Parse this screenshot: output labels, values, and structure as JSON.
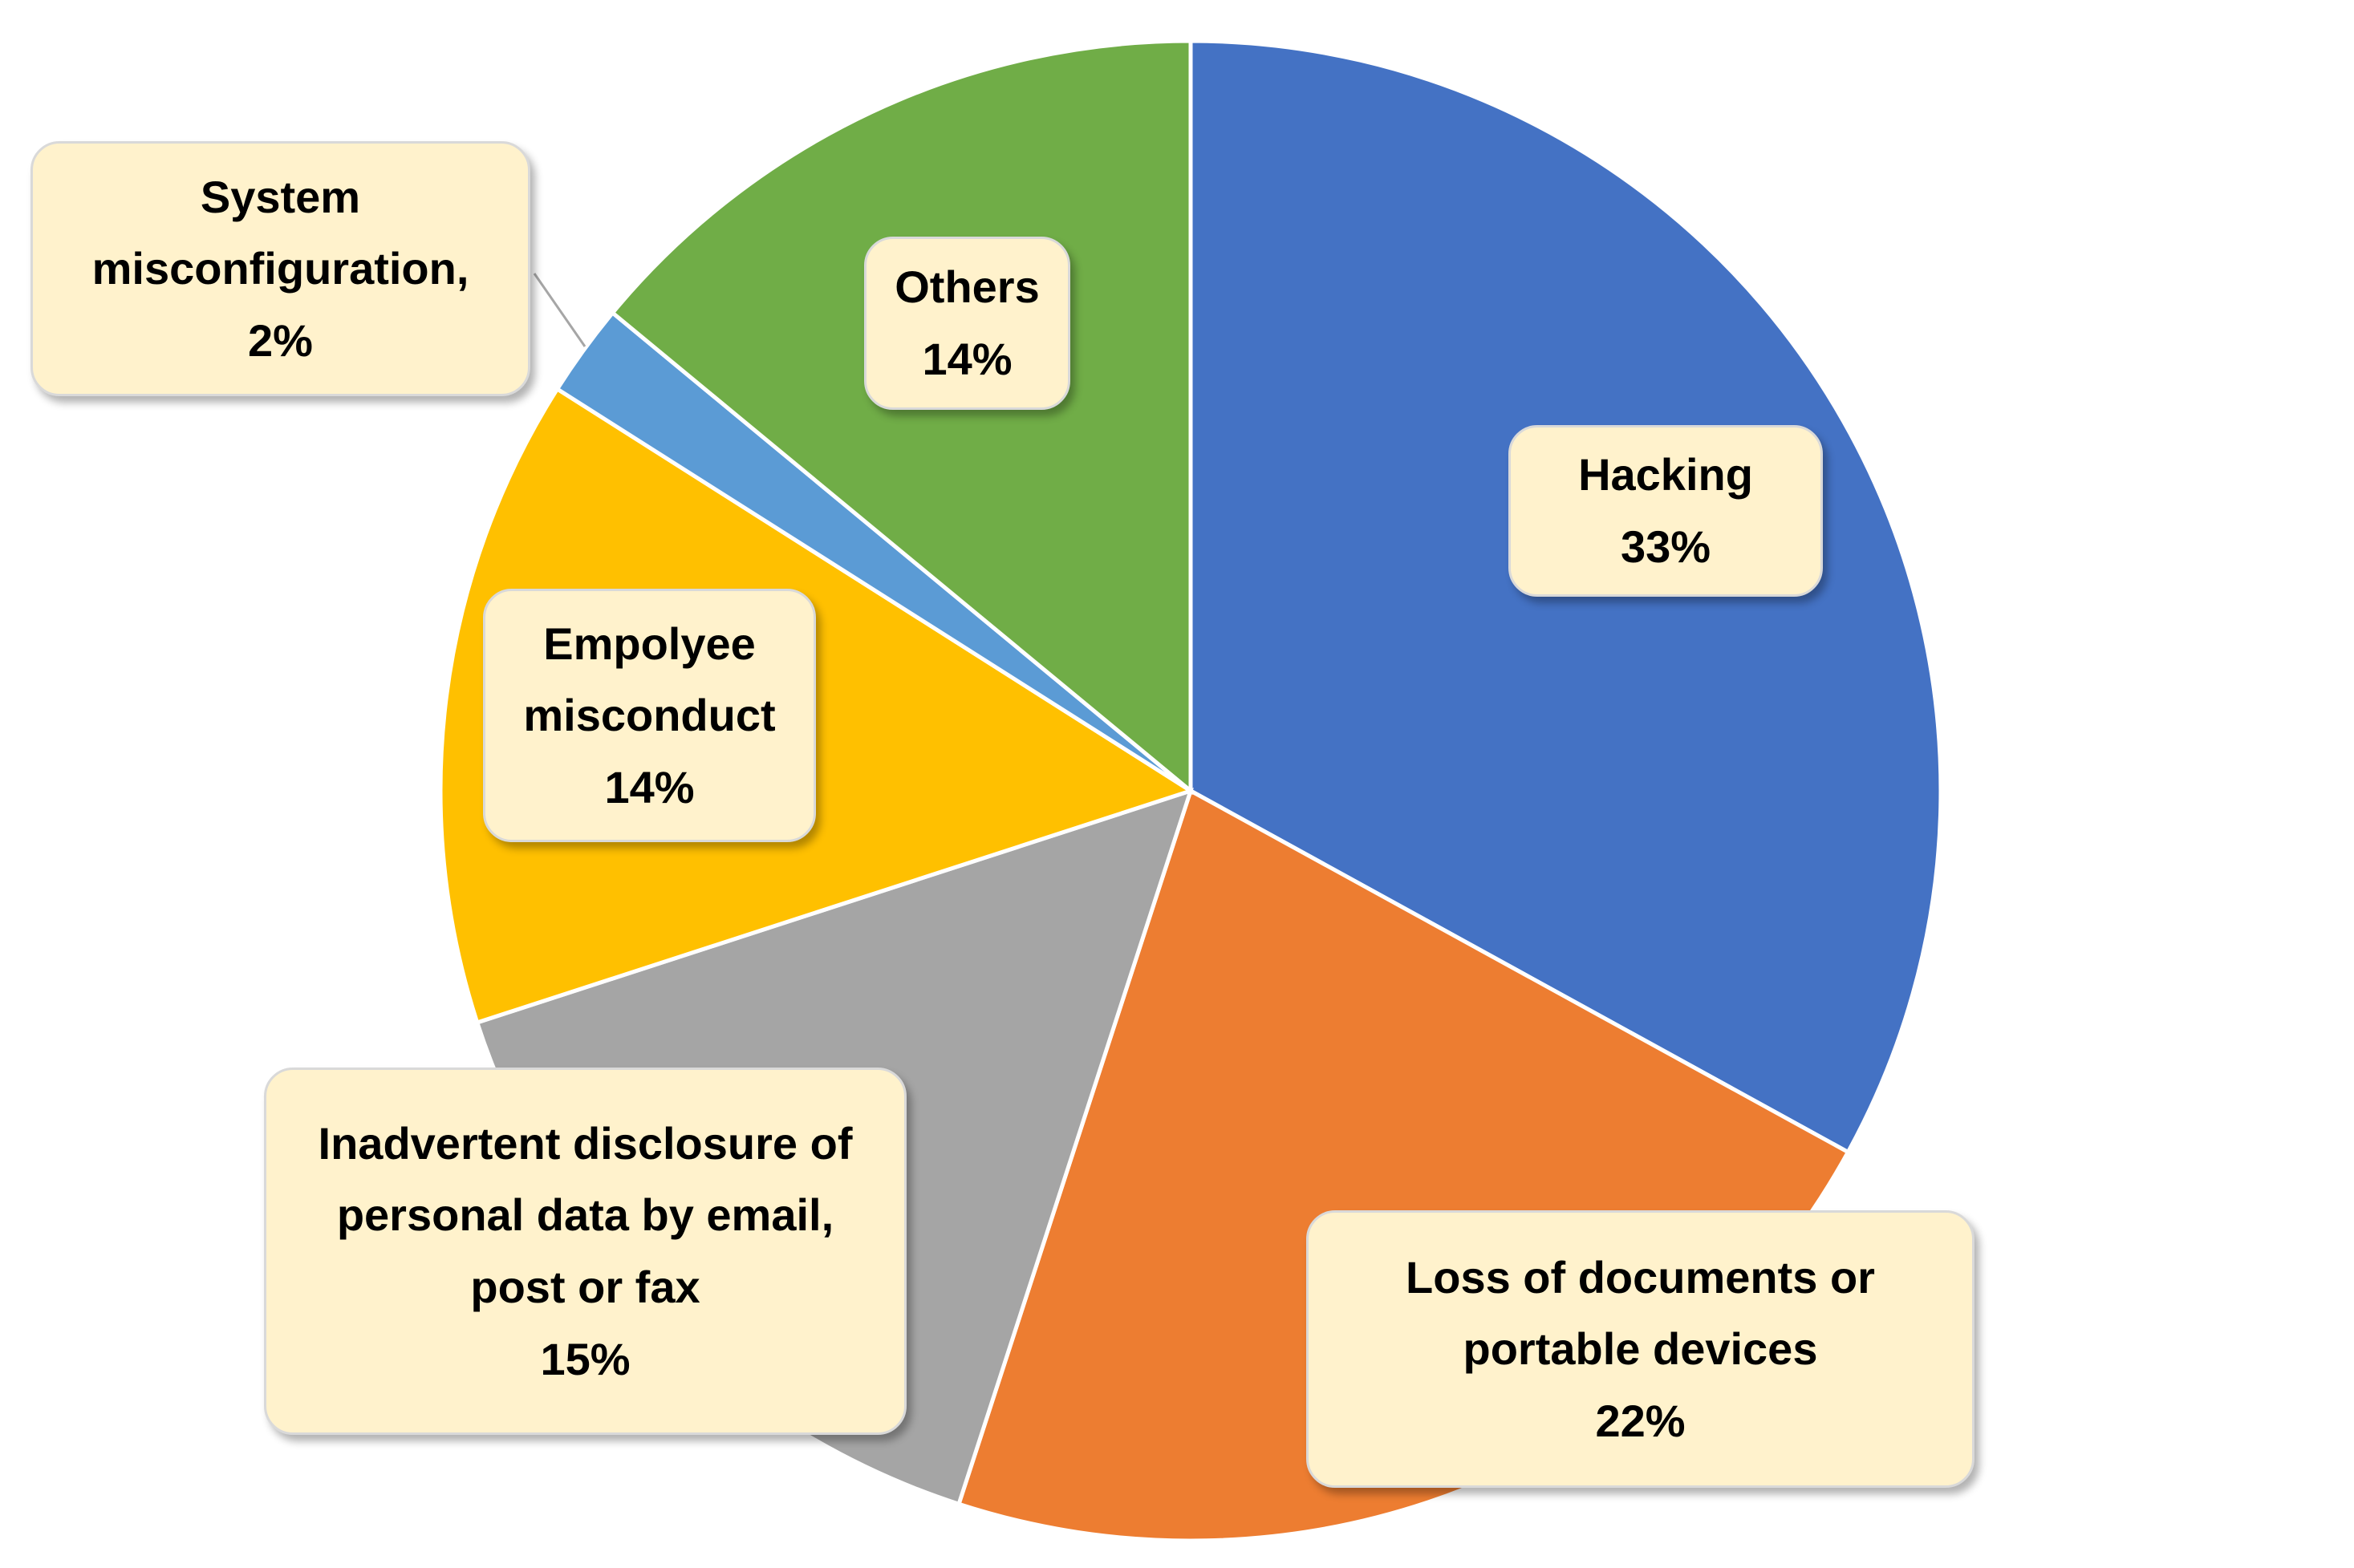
{
  "chart_data": {
    "type": "pie",
    "categories": [
      "Hacking",
      "Loss of documents or portable devices",
      "Inadvertent disclosure of personal data by email, post or fax",
      "Empolyee misconduct",
      "System misconfiguration,",
      "Others"
    ],
    "values": [
      33,
      22,
      15,
      14,
      2,
      14
    ],
    "value_labels": [
      "33%",
      "22%",
      "15%",
      "14%",
      "2%",
      "14%"
    ],
    "colors": [
      "#4472c4",
      "#ed7d31",
      "#a5a5a5",
      "#ffc000",
      "#5b9bd5",
      "#70ad47"
    ]
  }
}
